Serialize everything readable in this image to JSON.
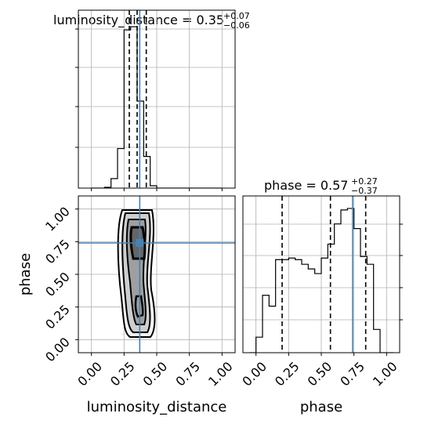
{
  "chart_data": {
    "type": "corner",
    "parameters": [
      "luminosity_distance",
      "phase"
    ],
    "truths": {
      "luminosity_distance": 0.37,
      "phase": 0.74
    },
    "axis_ticks": {
      "luminosity_distance": [
        "0.00",
        "0.25",
        "0.50",
        "0.75",
        "1.00"
      ],
      "phase": [
        "0.00",
        "0.25",
        "0.50",
        "0.75",
        "1.00"
      ]
    },
    "labels": {
      "xlabel_left": "luminosity_distance",
      "xlabel_right": "phase",
      "ylabel": "phase"
    },
    "titles": {
      "luminosity_distance": {
        "main": "luminosity_distance = 0.35",
        "plus": "+0.07",
        "minus": "−0.06"
      },
      "phase": {
        "main": "phase = 0.57",
        "plus": "+0.27",
        "minus": "−0.37"
      }
    },
    "hist_luminosity_distance": {
      "bin_edges": [
        0.0,
        0.05,
        0.1,
        0.15,
        0.2,
        0.25,
        0.3,
        0.35,
        0.4,
        0.45,
        0.5,
        0.55,
        0.6,
        0.65,
        0.7,
        0.75,
        0.8,
        0.85,
        0.9,
        0.95,
        1.0
      ],
      "counts": [
        0,
        0,
        0.5,
        6,
        25,
        100,
        102,
        55,
        20,
        1.5,
        0,
        0,
        0,
        0,
        0,
        0,
        0,
        0,
        0,
        0
      ],
      "quantiles": [
        0.29,
        0.35,
        0.42
      ]
    },
    "hist_phase": {
      "bin_edges": [
        -0.05,
        0.0,
        0.05,
        0.1,
        0.15,
        0.2,
        0.25,
        0.3,
        0.35,
        0.4,
        0.45,
        0.5,
        0.55,
        0.6,
        0.65,
        0.7,
        0.75,
        0.8,
        0.85,
        0.9,
        0.95,
        1.0,
        1.05
      ],
      "counts": [
        0,
        10,
        37,
        30,
        60,
        60,
        61,
        60,
        57,
        54,
        51,
        61,
        70,
        83,
        92,
        93,
        80,
        62,
        57,
        15,
        0,
        0
      ],
      "quantiles": [
        0.2,
        0.57,
        0.84
      ]
    },
    "scatter_2d": {
      "x_param": "luminosity_distance",
      "y_param": "phase",
      "x_center": 0.35,
      "x_spread": 0.04,
      "y_range": [
        0.03,
        0.98
      ]
    }
  }
}
